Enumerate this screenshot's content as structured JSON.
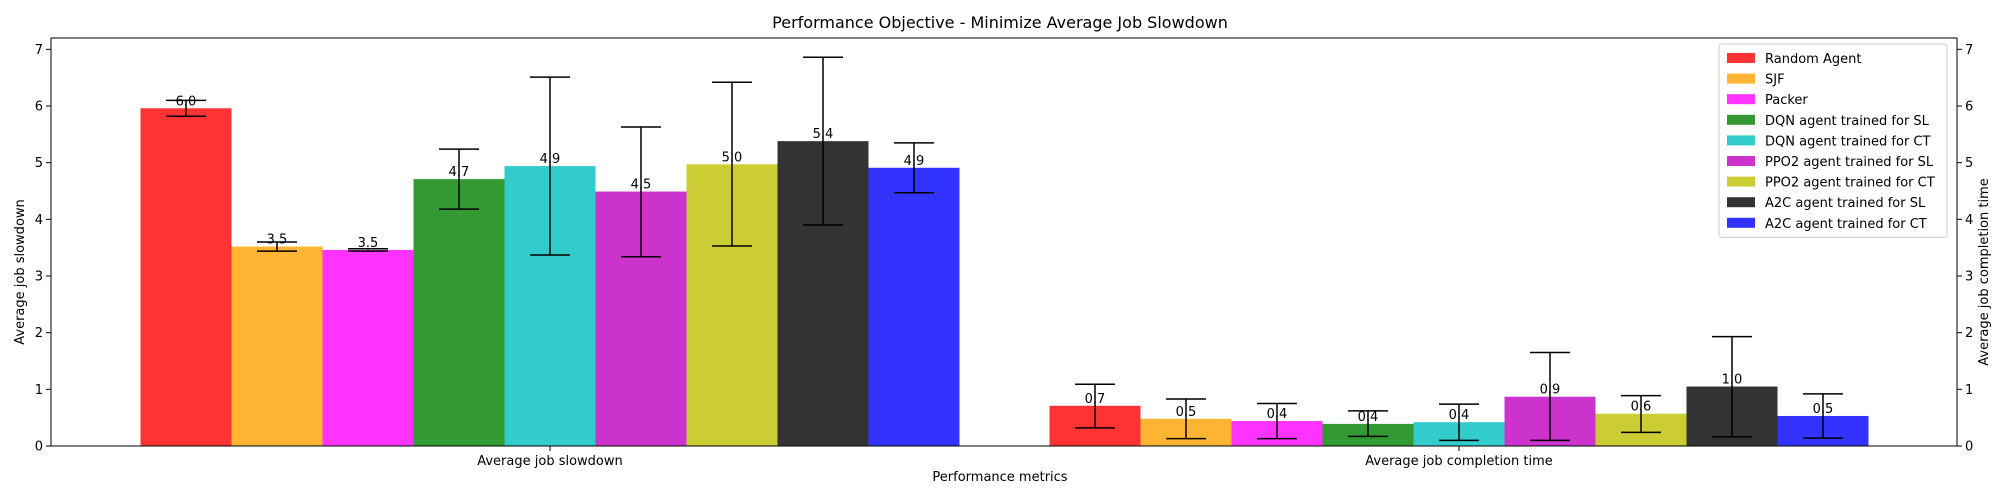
{
  "chart_data": {
    "type": "bar",
    "title": "Performance Objective - Minimize Average Job Slowdown",
    "xlabel": "Performance metrics",
    "ylabel_left": "Average job slowdown",
    "ylabel_right": "Average job completion time",
    "categories": [
      "Average job slowdown",
      "Average job completion time"
    ],
    "ylim": [
      0,
      7.2
    ],
    "yticks": [
      "0",
      "1",
      "2",
      "3",
      "4",
      "5",
      "6",
      "7"
    ],
    "legend_position": "top-right",
    "grid": false,
    "series": [
      {
        "name": "Random Agent",
        "color": "#ff3333",
        "values": [
          5.96,
          0.71
        ],
        "labels": [
          "6.0",
          "0.7"
        ],
        "err_low": [
          5.82,
          0.32
        ],
        "err_high": [
          6.1,
          1.09
        ]
      },
      {
        "name": "SJF",
        "color": "#ffb433",
        "values": [
          3.52,
          0.48
        ],
        "labels": [
          "3.5",
          "0.5"
        ],
        "err_low": [
          3.44,
          0.13
        ],
        "err_high": [
          3.6,
          0.83
        ]
      },
      {
        "name": "Packer",
        "color": "#ff33ff",
        "values": [
          3.46,
          0.44
        ],
        "labels": [
          "3.5",
          "0.4"
        ],
        "err_low": [
          3.44,
          0.13
        ],
        "err_high": [
          3.48,
          0.75
        ]
      },
      {
        "name": "DQN agent trained for SL",
        "color": "#339933",
        "values": [
          4.71,
          0.39
        ],
        "labels": [
          "4.7",
          "0.4"
        ],
        "err_low": [
          4.18,
          0.17
        ],
        "err_high": [
          5.24,
          0.62
        ]
      },
      {
        "name": "DQN agent trained for CT",
        "color": "#33cccc",
        "values": [
          4.94,
          0.42
        ],
        "labels": [
          "4.9",
          "0.4"
        ],
        "err_low": [
          3.37,
          0.1
        ],
        "err_high": [
          6.51,
          0.74
        ]
      },
      {
        "name": "PPO2 agent trained for SL",
        "color": "#cc33cc",
        "values": [
          4.49,
          0.87
        ],
        "labels": [
          "4.5",
          "0.9"
        ],
        "err_low": [
          3.34,
          0.1
        ],
        "err_high": [
          5.63,
          1.65
        ]
      },
      {
        "name": "PPO2 agent trained for CT",
        "color": "#cccc33",
        "values": [
          4.97,
          0.57
        ],
        "labels": [
          "5.0",
          "0.6"
        ],
        "err_low": [
          3.53,
          0.24
        ],
        "err_high": [
          6.42,
          0.89
        ]
      },
      {
        "name": "A2C agent trained for SL",
        "color": "#333333",
        "values": [
          5.38,
          1.05
        ],
        "labels": [
          "5.4",
          "1.0"
        ],
        "err_low": [
          3.9,
          0.16
        ],
        "err_high": [
          6.86,
          1.93
        ]
      },
      {
        "name": "A2C agent trained for CT",
        "color": "#3333ff",
        "values": [
          4.91,
          0.53
        ],
        "labels": [
          "4.9",
          "0.5"
        ],
        "err_low": [
          4.47,
          0.14
        ],
        "err_high": [
          5.35,
          0.92
        ]
      }
    ]
  }
}
